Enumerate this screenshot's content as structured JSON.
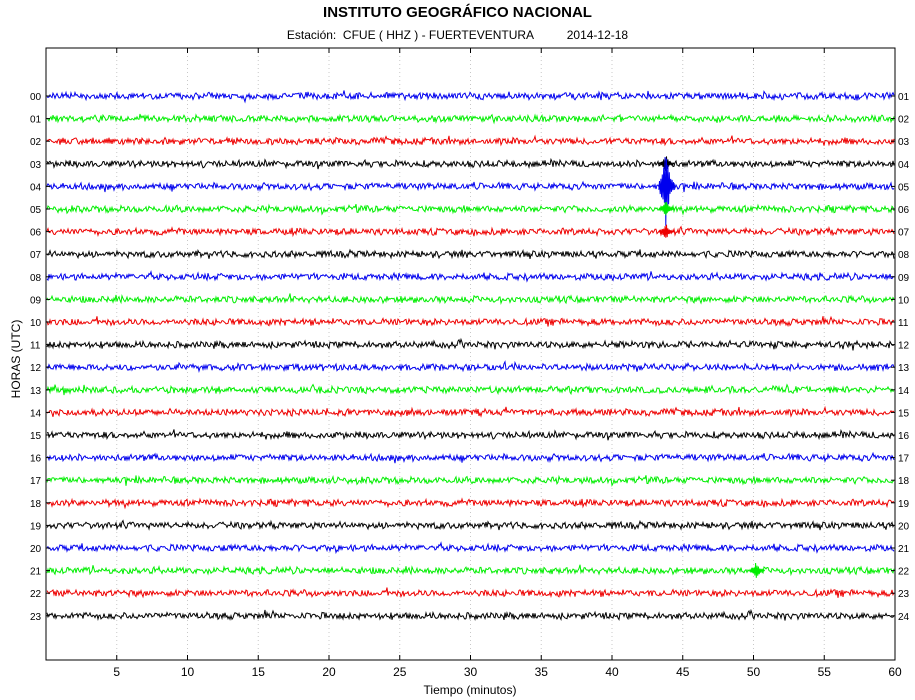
{
  "header": {
    "title": "INSTITUTO GEOGRÁFICO NACIONAL",
    "station_label": "Estación:",
    "station": "CFUE ( HHZ ) - FUERTEVENTURA",
    "date": "2014-12-18"
  },
  "chart_data": {
    "type": "line",
    "xlabel": "Tiempo (minutos)",
    "ylabel": "HORAS (UTC)",
    "xlim": [
      0,
      60
    ],
    "x_ticks": [
      5,
      10,
      15,
      20,
      25,
      30,
      35,
      40,
      45,
      50,
      55,
      60
    ],
    "grid": "vertical dotted",
    "left_tick_labels": [
      "00",
      "01",
      "02",
      "03",
      "04",
      "05",
      "06",
      "07",
      "08",
      "09",
      "10",
      "11",
      "12",
      "13",
      "14",
      "15",
      "16",
      "17",
      "18",
      "19",
      "20",
      "21",
      "22",
      "23"
    ],
    "right_tick_labels": [
      "01",
      "02",
      "03",
      "04",
      "05",
      "06",
      "07",
      "08",
      "09",
      "10",
      "11",
      "12",
      "13",
      "14",
      "15",
      "16",
      "17",
      "18",
      "19",
      "20",
      "21",
      "22",
      "23",
      "24"
    ],
    "trace_color_cycle": [
      "#0000ee",
      "#00ee00",
      "#ee0000",
      "#000000"
    ],
    "events": [
      {
        "hour_rows": [
          "03",
          "04",
          "05",
          "06"
        ],
        "minute": 43.8,
        "peak_hour": "04"
      },
      {
        "hour_rows": [
          "21"
        ],
        "minute": 50.2
      }
    ]
  }
}
